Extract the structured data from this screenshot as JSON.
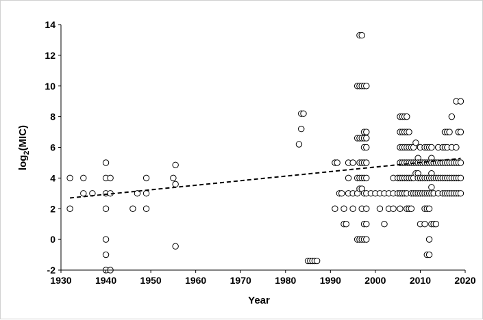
{
  "chart_data": {
    "type": "scatter",
    "xlabel": "Year",
    "ylabel_main": "log",
    "ylabel_sub": "2",
    "ylabel_rest": "(MIC)",
    "xlim": [
      1930,
      2020
    ],
    "ylim": [
      -2,
      14
    ],
    "xticks": [
      1930,
      1940,
      1950,
      1960,
      1970,
      1980,
      1990,
      2000,
      2010,
      2020
    ],
    "yticks": [
      -2,
      0,
      2,
      4,
      6,
      8,
      10,
      12,
      14
    ],
    "grid": false,
    "legend": "none",
    "marker": "open-circle",
    "trendline": {
      "style": "dashed",
      "x": [
        1932,
        2019
      ],
      "y": [
        2.7,
        5.28
      ]
    },
    "points": [
      [
        1932,
        4
      ],
      [
        1932,
        2
      ],
      [
        1935,
        4
      ],
      [
        1935,
        3
      ],
      [
        1937,
        3
      ],
      [
        1940,
        5
      ],
      [
        1940,
        4
      ],
      [
        1940,
        3
      ],
      [
        1940,
        2
      ],
      [
        1940,
        0
      ],
      [
        1940,
        -1
      ],
      [
        1940,
        -2
      ],
      [
        1941,
        4
      ],
      [
        1941,
        3
      ],
      [
        1941,
        -2
      ],
      [
        1946,
        2
      ],
      [
        1947,
        3
      ],
      [
        1949,
        4
      ],
      [
        1949,
        3
      ],
      [
        1949,
        2
      ],
      [
        1955,
        4
      ],
      [
        1955.5,
        4.85
      ],
      [
        1955.5,
        3.6
      ],
      [
        1955.5,
        -0.45
      ],
      [
        1983,
        6.2
      ],
      [
        1983.5,
        8.2
      ],
      [
        1983.5,
        7.2
      ],
      [
        1984,
        8.2
      ],
      [
        1985,
        -1.4
      ],
      [
        1985.5,
        -1.4
      ],
      [
        1986,
        -1.4
      ],
      [
        1986.5,
        -1.4
      ],
      [
        1987,
        -1.4
      ],
      [
        1991,
        5
      ],
      [
        1991,
        2
      ],
      [
        1991.5,
        5
      ],
      [
        1992,
        3
      ],
      [
        1992.5,
        3
      ],
      [
        1993,
        2
      ],
      [
        1993,
        1
      ],
      [
        1993.5,
        1
      ],
      [
        1994,
        5
      ],
      [
        1994,
        4
      ],
      [
        1994,
        3
      ],
      [
        1995,
        5
      ],
      [
        1995,
        3
      ],
      [
        1995,
        2
      ],
      [
        1996,
        10
      ],
      [
        1996,
        6.6
      ],
      [
        1996,
        4
      ],
      [
        1996,
        3
      ],
      [
        1996,
        0
      ],
      [
        1996.5,
        13.3
      ],
      [
        1996.5,
        10
      ],
      [
        1996.5,
        6.6
      ],
      [
        1996.5,
        5
      ],
      [
        1996.5,
        4
      ],
      [
        1996.5,
        3.3
      ],
      [
        1996.5,
        0
      ],
      [
        1997,
        13.3
      ],
      [
        1997,
        10
      ],
      [
        1997,
        6.6
      ],
      [
        1997,
        5
      ],
      [
        1997,
        4
      ],
      [
        1997,
        3.3
      ],
      [
        1997,
        2
      ],
      [
        1997,
        0
      ],
      [
        1997.5,
        10
      ],
      [
        1997.5,
        7
      ],
      [
        1997.5,
        6.6
      ],
      [
        1997.5,
        6
      ],
      [
        1997.5,
        5
      ],
      [
        1997.5,
        4
      ],
      [
        1997.5,
        3
      ],
      [
        1997.5,
        1
      ],
      [
        1997.5,
        0
      ],
      [
        1998,
        10
      ],
      [
        1998,
        7
      ],
      [
        1998,
        6.6
      ],
      [
        1998,
        6
      ],
      [
        1998,
        5
      ],
      [
        1998,
        4
      ],
      [
        1998,
        3
      ],
      [
        1998,
        2
      ],
      [
        1998,
        1
      ],
      [
        1998,
        0
      ],
      [
        1999,
        3
      ],
      [
        2000,
        3
      ],
      [
        2001,
        3
      ],
      [
        2001,
        2
      ],
      [
        2002,
        3
      ],
      [
        2002,
        1
      ],
      [
        2003,
        3
      ],
      [
        2003,
        2
      ],
      [
        2004,
        4
      ],
      [
        2004,
        3
      ],
      [
        2004,
        2
      ],
      [
        2005,
        4
      ],
      [
        2005,
        3
      ],
      [
        2005.5,
        8
      ],
      [
        2005.5,
        7
      ],
      [
        2005.5,
        6
      ],
      [
        2005.5,
        5
      ],
      [
        2005.5,
        4
      ],
      [
        2005.5,
        3
      ],
      [
        2005.5,
        2
      ],
      [
        2006,
        8
      ],
      [
        2006,
        7
      ],
      [
        2006,
        6
      ],
      [
        2006,
        5
      ],
      [
        2006,
        4
      ],
      [
        2006,
        3
      ],
      [
        2006.5,
        8
      ],
      [
        2006.5,
        7
      ],
      [
        2006.5,
        6
      ],
      [
        2006.5,
        5
      ],
      [
        2006.5,
        4
      ],
      [
        2006.5,
        3
      ],
      [
        2007,
        8
      ],
      [
        2007,
        7
      ],
      [
        2007,
        6
      ],
      [
        2007,
        5
      ],
      [
        2007,
        4
      ],
      [
        2007,
        3
      ],
      [
        2007,
        2
      ],
      [
        2007.5,
        7
      ],
      [
        2007.5,
        6
      ],
      [
        2007.5,
        5
      ],
      [
        2007.5,
        4
      ],
      [
        2007.5,
        2
      ],
      [
        2008,
        6
      ],
      [
        2008,
        5
      ],
      [
        2008,
        4
      ],
      [
        2008,
        3
      ],
      [
        2008,
        2
      ],
      [
        2008.5,
        6
      ],
      [
        2008.5,
        5
      ],
      [
        2008.5,
        4
      ],
      [
        2008.5,
        3
      ],
      [
        2009,
        6.3
      ],
      [
        2009,
        5
      ],
      [
        2009,
        4.3
      ],
      [
        2009,
        3
      ],
      [
        2009.5,
        5.3
      ],
      [
        2009.5,
        5
      ],
      [
        2009.5,
        4.3
      ],
      [
        2009.5,
        4
      ],
      [
        2009.5,
        3
      ],
      [
        2010,
        6
      ],
      [
        2010,
        5
      ],
      [
        2010,
        4
      ],
      [
        2010,
        3
      ],
      [
        2010,
        1
      ],
      [
        2010.5,
        5
      ],
      [
        2010.5,
        4
      ],
      [
        2010.5,
        3
      ],
      [
        2011,
        6
      ],
      [
        2011,
        5
      ],
      [
        2011,
        4
      ],
      [
        2011,
        3
      ],
      [
        2011,
        2
      ],
      [
        2011,
        1
      ],
      [
        2011.5,
        6
      ],
      [
        2011.5,
        5
      ],
      [
        2011.5,
        4
      ],
      [
        2011.5,
        3
      ],
      [
        2011.5,
        2
      ],
      [
        2011.5,
        -1
      ],
      [
        2012,
        6
      ],
      [
        2012,
        5
      ],
      [
        2012,
        4
      ],
      [
        2012,
        3
      ],
      [
        2012,
        2
      ],
      [
        2012,
        0
      ],
      [
        2012,
        -1
      ],
      [
        2012.5,
        6
      ],
      [
        2012.5,
        5.3
      ],
      [
        2012.5,
        5
      ],
      [
        2012.5,
        4.3
      ],
      [
        2012.5,
        4
      ],
      [
        2012.5,
        3.4
      ],
      [
        2012.5,
        3
      ],
      [
        2012.5,
        1
      ],
      [
        2013,
        5
      ],
      [
        2013,
        4
      ],
      [
        2013,
        3
      ],
      [
        2013,
        1
      ],
      [
        2013.5,
        5
      ],
      [
        2013.5,
        4
      ],
      [
        2013.5,
        1
      ],
      [
        2014,
        6
      ],
      [
        2014,
        5
      ],
      [
        2014,
        4
      ],
      [
        2014,
        3
      ],
      [
        2014.5,
        5
      ],
      [
        2014.5,
        4
      ],
      [
        2015,
        6
      ],
      [
        2015,
        5
      ],
      [
        2015,
        4
      ],
      [
        2015,
        3
      ],
      [
        2015.5,
        7
      ],
      [
        2015.5,
        6
      ],
      [
        2015.5,
        5
      ],
      [
        2015.5,
        4
      ],
      [
        2015.5,
        3
      ],
      [
        2016,
        7
      ],
      [
        2016,
        6
      ],
      [
        2016,
        5
      ],
      [
        2016,
        4
      ],
      [
        2016,
        3
      ],
      [
        2016.5,
        7
      ],
      [
        2016.5,
        5
      ],
      [
        2016.5,
        4
      ],
      [
        2016.5,
        3
      ],
      [
        2017,
        8
      ],
      [
        2017,
        6
      ],
      [
        2017,
        5
      ],
      [
        2017,
        4
      ],
      [
        2017,
        3
      ],
      [
        2017.5,
        5
      ],
      [
        2017.5,
        4
      ],
      [
        2017.5,
        3
      ],
      [
        2018,
        9
      ],
      [
        2018,
        6
      ],
      [
        2018,
        5
      ],
      [
        2018,
        4
      ],
      [
        2018,
        3
      ],
      [
        2018.5,
        7
      ],
      [
        2018.5,
        5
      ],
      [
        2018.5,
        4
      ],
      [
        2018.5,
        3
      ],
      [
        2019,
        9
      ],
      [
        2019,
        7
      ],
      [
        2019,
        5
      ],
      [
        2019,
        4
      ],
      [
        2019,
        3
      ]
    ]
  }
}
